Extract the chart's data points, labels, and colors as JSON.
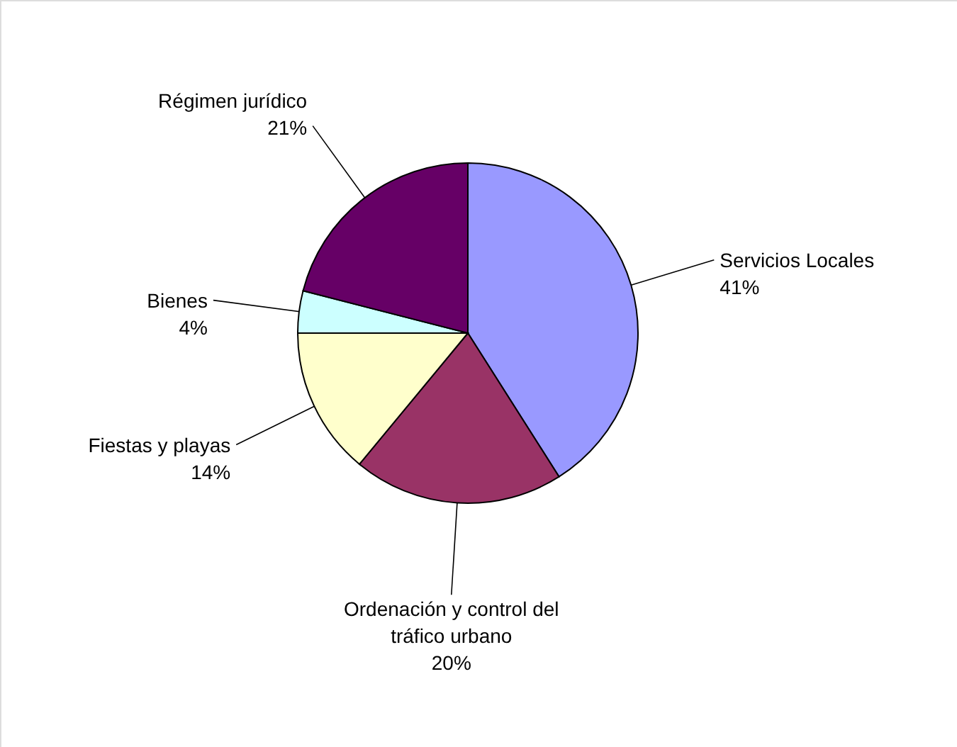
{
  "chart_data": {
    "type": "pie",
    "categories": [
      "Servicios Locales",
      "Ordenación y control del tráfico urbano",
      "Fiestas y playas",
      "Bienes",
      "Régimen jurídico"
    ],
    "values": [
      41,
      20,
      14,
      4,
      21
    ],
    "value_labels": [
      "41%",
      "20%",
      "14%",
      "4%",
      "21%"
    ],
    "colors": [
      "#9999ff",
      "#993366",
      "#ffffcc",
      "#ccffff",
      "#660066"
    ]
  }
}
